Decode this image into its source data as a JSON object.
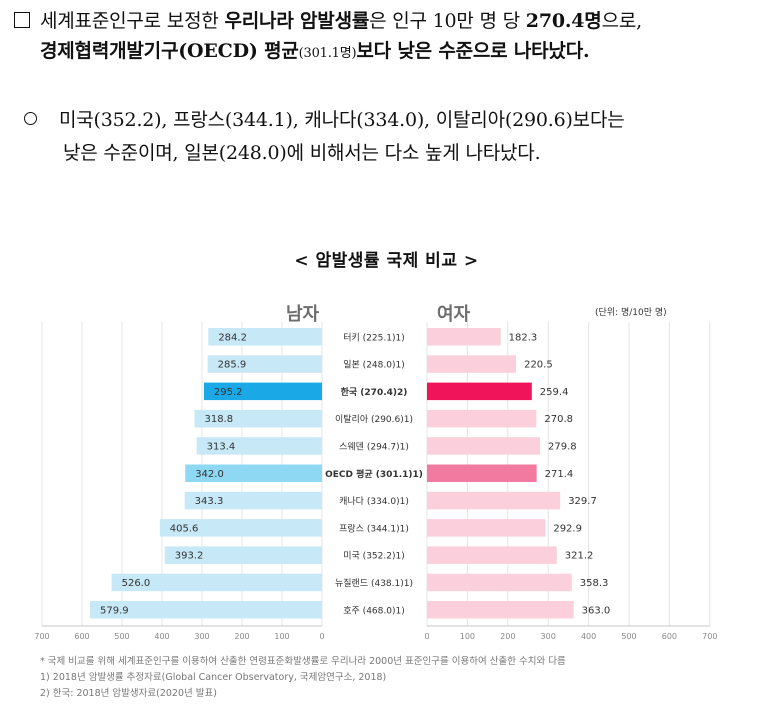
{
  "para1": {
    "prefix": "세계표준인구로 보정한 ",
    "bold1": "우리나라 암발생률",
    "mid1": "은 인구 10만 명 당 ",
    "bold2": "270.4명",
    "mid2": "으로,",
    "bold3": "경제협력개발기구(OECD) 평균",
    "small": "(301.1명)",
    "bold4": "보다 낮은 수준으로 나타났다."
  },
  "para2": {
    "line1": "미국(352.2), 프랑스(344.1), 캐나다(334.0), 이탈리아(290.6)보다는",
    "line2": "낮은 수준이며, 일본(248.0)에 비해서는 다소 높게 나타났다."
  },
  "chart_title": "< 암발생률 국제 비교 >",
  "headers": {
    "male": "남자",
    "female": "여자",
    "unit": "(단위: 명/10만 명)"
  },
  "chart_data": {
    "type": "bar",
    "orientation": "horizontal-butterfly",
    "categories": [
      "터키 (225.1)1)",
      "일본 (248.0)1)",
      "한국 (270.4)2)",
      "이탈리아 (290.6)1)",
      "스웨덴 (294.7)1)",
      "OECD 평균 (301.1)1)",
      "캐나다 (334.0)1)",
      "프랑스 (344.1)1)",
      "미국 (352.2)1)",
      "뉴질랜드 (438.1)1)",
      "호주 (468.0)1)"
    ],
    "series": [
      {
        "name": "남자",
        "values": [
          284.2,
          285.9,
          295.2,
          318.8,
          313.4,
          342.0,
          343.3,
          405.6,
          393.2,
          526.0,
          579.9
        ]
      },
      {
        "name": "여자",
        "values": [
          182.3,
          220.5,
          259.4,
          270.8,
          279.8,
          271.4,
          329.7,
          292.9,
          321.2,
          358.3,
          363.0
        ]
      }
    ],
    "highlight": {
      "한국": [
        "#1ba8e6",
        "#f0145a"
      ],
      "OECD 평균": [
        "#8ed8f4",
        "#f27aa0"
      ]
    },
    "colors": {
      "male": "#c7e8f6",
      "female": "#fbd0dc",
      "axis": "#c9c9c9",
      "grid": "#e4e4e4"
    },
    "male_ticks": [
      "700",
      "600",
      "500",
      "400",
      "300",
      "200",
      "100",
      "0"
    ],
    "female_ticks": [
      "0",
      "100",
      "200",
      "300",
      "400",
      "500",
      "600",
      "700"
    ],
    "xlim": [
      0,
      700
    ],
    "bold_categories": [
      "한국 (270.4)2)",
      "OECD 평균 (301.1)1)"
    ]
  },
  "notes": [
    "* 국제 비교를 위해 세계표준인구를 이용하여 산출한 연령표준화발생률로 우리나라 2000년 표준인구를 이용하여 산출한 수치와 다름",
    "1) 2018년 암발생률 추정자료(Global Cancer Observatory, 국제암연구소, 2018)",
    "2) 한국: 2018년 암발생자료(2020년 발표)"
  ]
}
